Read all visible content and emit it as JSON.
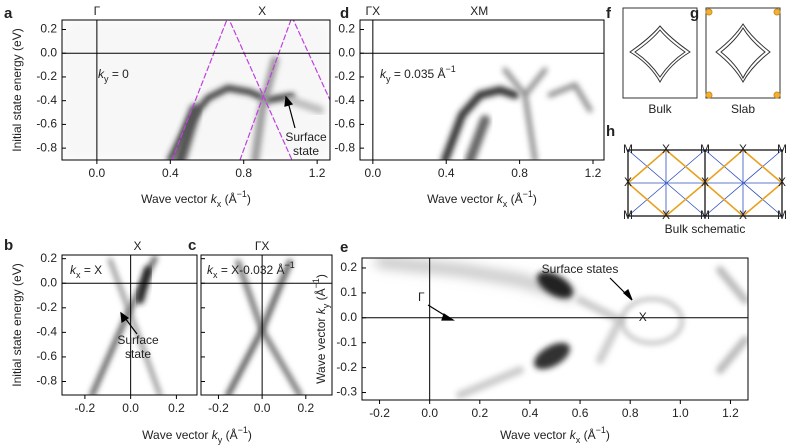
{
  "chart_data": [
    {
      "type": "heatmap",
      "panel": "a",
      "top_labels": [
        "Γ",
        "X"
      ],
      "ylabel": "Initial state energy (eV)",
      "xlabel": {
        "t": "Wave vector ",
        "i": "k",
        "sub": "x",
        "t2": " (Å",
        "sup": "−1",
        "t3": ")"
      },
      "annotations": [
        {
          "i": "k",
          "sub": "y",
          "t": " = 0"
        },
        "Surface",
        "state"
      ],
      "xlim": [
        -0.19,
        1.27
      ],
      "ylim": [
        -0.9,
        0.28
      ],
      "xticks": [
        {
          "value": 0,
          "label": "0.0"
        },
        0.4,
        0.8,
        1.2
      ],
      "yticks": [
        0.2,
        {
          "value": 0,
          "label": "0.0"
        },
        -0.2,
        -0.4,
        -0.6,
        -0.8
      ]
    },
    {
      "type": "heatmap",
      "panel": "d",
      "top_labels": [
        "ΓX",
        "XM"
      ],
      "xlabel": {
        "t": "Wave vector ",
        "i": "k",
        "sub": "x",
        "t2": " (Å",
        "sup": "−1",
        "t3": ")"
      },
      "annotations": [
        {
          "i": "k",
          "sub": "y",
          "t": " = 0.035 Å",
          "sup": "−1"
        }
      ],
      "xlim": [
        -0.07,
        1.26
      ],
      "ylim": [
        -0.9,
        0.28
      ],
      "xticks": [
        {
          "value": 0,
          "label": "0.0"
        },
        0.4,
        0.8,
        1.2
      ],
      "yticks": [
        0.2,
        {
          "value": 0,
          "label": "0.0"
        },
        -0.2,
        -0.4,
        -0.6,
        -0.8
      ]
    },
    {
      "type": "heatmap",
      "panel": "b",
      "top_labels": [
        "X"
      ],
      "ylabel": "Initial state energy (eV)",
      "xlabel": {
        "t": "Wave vector ",
        "i": "k",
        "sub": "y",
        "t2": " (Å",
        "sup": "−1",
        "t3": ")"
      },
      "annotations": [
        {
          "i": "k",
          "sub": "x",
          "t": " = X"
        },
        "Surface",
        "state"
      ],
      "xlim": [
        -0.3,
        0.29
      ],
      "ylim": [
        -0.91,
        0.23
      ],
      "xticks": [
        -0.2,
        {
          "value": 0,
          "label": "0.0"
        },
        0.2
      ],
      "yticks": [
        0.2,
        {
          "value": 0,
          "label": "0.0"
        },
        -0.2,
        -0.4,
        -0.6,
        -0.8
      ]
    },
    {
      "type": "heatmap",
      "panel": "c",
      "top_labels": [
        "ΓX"
      ],
      "annotations": [
        {
          "i": "k",
          "sub": "x",
          "t": " = X-0.032 Å",
          "sup": "−1"
        }
      ],
      "xlim": [
        -0.28,
        0.32
      ],
      "ylim": [
        -0.91,
        0.23
      ],
      "xticks": [
        -0.2,
        {
          "value": 0,
          "label": "0.0"
        },
        0.2
      ],
      "yticks": [
        0.2,
        {
          "value": 0,
          "label": "0.0"
        },
        -0.2,
        -0.4,
        -0.6,
        -0.8
      ]
    },
    {
      "type": "heatmap",
      "panel": "e",
      "ylabel": {
        "t": "Wave vector ",
        "i": "k",
        "sub": "y",
        "t2": " (Å",
        "sup": "−1",
        "t3": ")"
      },
      "xlabel": {
        "t": "Wave vector ",
        "i": "k",
        "sub": "x",
        "t2": " (Å",
        "sup": "−1",
        "t3": ")"
      },
      "annotations": [
        "Γ",
        "Surface states",
        "X"
      ],
      "xlim": [
        -0.27,
        1.27
      ],
      "ylim": [
        -0.33,
        0.24
      ],
      "xticks": [
        -0.2,
        {
          "value": 0,
          "label": "0.0"
        },
        0.2,
        0.4,
        0.6,
        0.8,
        {
          "value": 1,
          "label": "1.0"
        },
        1.2
      ],
      "yticks": [
        0.2,
        0.1,
        {
          "value": 0,
          "label": "0.0"
        },
        -0.1,
        -0.2,
        -0.3
      ]
    },
    {
      "type": "diagram",
      "panel": "f",
      "caption": "Bulk"
    },
    {
      "type": "diagram",
      "panel": "g",
      "caption": "Slab"
    },
    {
      "type": "schematic",
      "panel": "h",
      "caption": "Bulk schematic",
      "points": [
        "M",
        "X",
        "M",
        "X",
        "M",
        "X",
        "X",
        "X",
        "M",
        "X",
        "M",
        "X",
        "M"
      ]
    }
  ]
}
